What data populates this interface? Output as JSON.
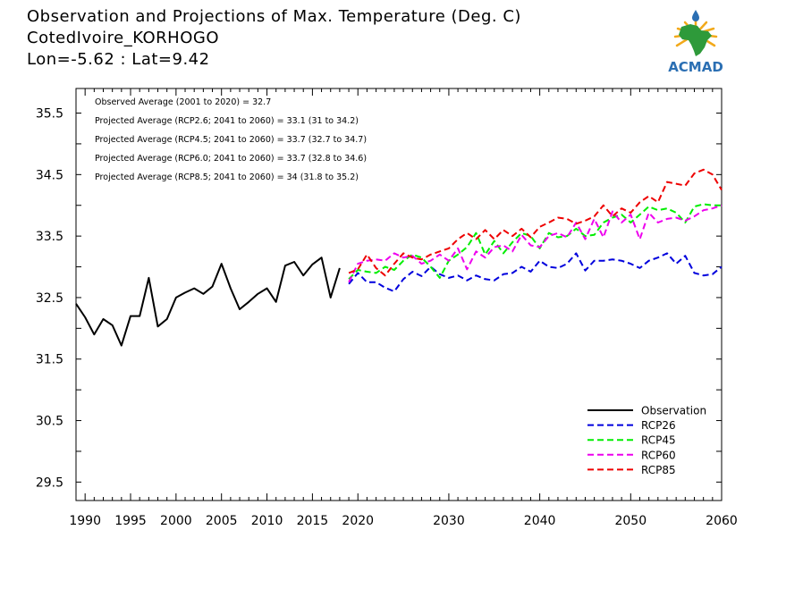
{
  "header": {
    "title": "Observation and Projections of Max. Temperature (Deg. C)",
    "station": "CotedIvoire_KORHOGO",
    "coords": "Lon=-5.62 : Lat=9.42"
  },
  "logo": {
    "text": "ACMAD",
    "colors": {
      "map": "#2e9a3a",
      "sun": "#f2a91a",
      "text": "#2b6fb3",
      "drop": "#2b6fb3"
    }
  },
  "chart_data": {
    "type": "line",
    "title": "Observation and Projections of Max. Temperature (Deg. C)",
    "xlabel": "",
    "ylabel": "",
    "xlim": [
      1989,
      2060
    ],
    "ylim": [
      29.2,
      35.9
    ],
    "x_ticks": [
      1990,
      1995,
      2000,
      2005,
      2010,
      2015,
      2020,
      2030,
      2040,
      2050,
      2060
    ],
    "y_ticks": [
      29.5,
      30.5,
      31.5,
      32.5,
      33.5,
      34.5,
      35.5
    ],
    "grid": false,
    "legend_position": "bottom-right",
    "annotations": [
      "Observed Average (2001 to 2020) = 32.7",
      "Projected Average (RCP2.6; 2041 to 2060) = 33.1 (31 to 34.2)",
      "Projected Average (RCP4.5; 2041 to 2060) = 33.7 (32.7 to 34.7)",
      "Projected Average (RCP6.0; 2041 to 2060) = 33.7 (32.8 to 34.6)",
      "Projected Average (RCP8.5; 2041 to 2060) = 34 (31.8 to 35.2)"
    ],
    "series": [
      {
        "name": "Observation",
        "color": "#000000",
        "dash": "solid",
        "x": [
          1989,
          1990,
          1991,
          1992,
          1993,
          1994,
          1995,
          1996,
          1997,
          1998,
          1999,
          2000,
          2001,
          2002,
          2003,
          2004,
          2005,
          2006,
          2007,
          2008,
          2009,
          2010,
          2011,
          2012,
          2013,
          2014,
          2015,
          2016,
          2017,
          2018,
          2019
        ],
        "values": [
          32.4,
          32.18,
          31.9,
          32.15,
          32.05,
          31.72,
          32.2,
          32.2,
          32.82,
          32.03,
          32.15,
          32.5,
          32.58,
          32.65,
          32.56,
          32.68,
          33.05,
          32.65,
          32.31,
          32.43,
          32.56,
          32.65,
          32.43,
          33.02,
          33.08,
          32.86,
          33.04,
          33.15,
          32.5,
          32.98,
          null
        ]
      },
      {
        "name": "RCP26",
        "color": "#0000dd",
        "dash": "dashed",
        "x": [
          2019,
          2020,
          2021,
          2022,
          2023,
          2024,
          2025,
          2026,
          2027,
          2028,
          2029,
          2030,
          2031,
          2032,
          2033,
          2034,
          2035,
          2036,
          2037,
          2038,
          2039,
          2040,
          2041,
          2042,
          2043,
          2044,
          2045,
          2046,
          2047,
          2048,
          2049,
          2050,
          2051,
          2052,
          2053,
          2054,
          2055,
          2056,
          2057,
          2058,
          2059,
          2060
        ],
        "values": [
          32.72,
          32.9,
          32.75,
          32.75,
          32.66,
          32.6,
          32.8,
          32.92,
          32.85,
          33.0,
          32.88,
          32.82,
          32.86,
          32.78,
          32.86,
          32.8,
          32.78,
          32.88,
          32.9,
          33.0,
          32.92,
          33.1,
          33.0,
          32.98,
          33.05,
          33.22,
          32.94,
          33.1,
          33.1,
          33.12,
          33.1,
          33.05,
          32.98,
          33.1,
          33.15,
          33.22,
          33.05,
          33.18,
          32.9,
          32.86,
          32.88,
          33.0
        ]
      },
      {
        "name": "RCP45",
        "color": "#00ee00",
        "dash": "dashed",
        "x": [
          2019,
          2020,
          2021,
          2022,
          2023,
          2024,
          2025,
          2026,
          2027,
          2028,
          2029,
          2030,
          2031,
          2032,
          2033,
          2034,
          2035,
          2036,
          2037,
          2038,
          2039,
          2040,
          2041,
          2042,
          2043,
          2044,
          2045,
          2046,
          2047,
          2048,
          2049,
          2050,
          2051,
          2052,
          2053,
          2054,
          2055,
          2056,
          2057,
          2058,
          2059,
          2060
        ],
        "values": [
          32.8,
          32.95,
          32.92,
          32.9,
          33.0,
          32.95,
          33.1,
          33.2,
          33.15,
          33.0,
          32.82,
          33.1,
          33.2,
          33.32,
          33.55,
          33.2,
          33.42,
          33.22,
          33.4,
          33.55,
          33.5,
          33.3,
          33.55,
          33.48,
          33.5,
          33.62,
          33.5,
          33.52,
          33.72,
          33.8,
          33.85,
          33.72,
          33.85,
          33.98,
          33.92,
          33.95,
          33.88,
          33.72,
          33.98,
          34.02,
          34.0,
          34.0
        ]
      },
      {
        "name": "RCP60",
        "color": "#ee00ee",
        "dash": "dashed",
        "x": [
          2019,
          2020,
          2021,
          2022,
          2023,
          2024,
          2025,
          2026,
          2027,
          2028,
          2029,
          2030,
          2031,
          2032,
          2033,
          2034,
          2035,
          2036,
          2037,
          2038,
          2039,
          2040,
          2041,
          2042,
          2043,
          2044,
          2045,
          2046,
          2047,
          2048,
          2049,
          2050,
          2051,
          2052,
          2053,
          2054,
          2055,
          2056,
          2057,
          2058,
          2059,
          2060
        ],
        "values": [
          32.75,
          33.05,
          33.1,
          33.12,
          33.1,
          33.22,
          33.15,
          33.18,
          33.05,
          33.1,
          33.2,
          33.1,
          33.3,
          32.96,
          33.25,
          33.15,
          33.32,
          33.35,
          33.25,
          33.52,
          33.35,
          33.32,
          33.5,
          33.55,
          33.48,
          33.72,
          33.45,
          33.78,
          33.48,
          33.9,
          33.72,
          33.85,
          33.45,
          33.88,
          33.72,
          33.78,
          33.8,
          33.75,
          33.82,
          33.92,
          33.95,
          34.0
        ]
      },
      {
        "name": "RCP85",
        "color": "#ee0000",
        "dash": "dashed",
        "x": [
          2019,
          2020,
          2021,
          2022,
          2023,
          2024,
          2025,
          2026,
          2027,
          2028,
          2029,
          2030,
          2031,
          2032,
          2033,
          2034,
          2035,
          2036,
          2037,
          2038,
          2039,
          2040,
          2041,
          2042,
          2043,
          2044,
          2045,
          2046,
          2047,
          2048,
          2049,
          2050,
          2051,
          2052,
          2053,
          2054,
          2055,
          2056,
          2057,
          2058,
          2059,
          2060
        ],
        "values": [
          32.9,
          32.96,
          33.2,
          32.98,
          32.86,
          33.05,
          33.22,
          33.15,
          33.12,
          33.2,
          33.25,
          33.3,
          33.45,
          33.55,
          33.45,
          33.6,
          33.45,
          33.6,
          33.5,
          33.62,
          33.48,
          33.65,
          33.72,
          33.8,
          33.78,
          33.7,
          33.75,
          33.82,
          34.0,
          33.82,
          33.95,
          33.88,
          34.05,
          34.15,
          34.05,
          34.38,
          34.35,
          34.32,
          34.52,
          34.58,
          34.5,
          34.25
        ]
      }
    ]
  }
}
